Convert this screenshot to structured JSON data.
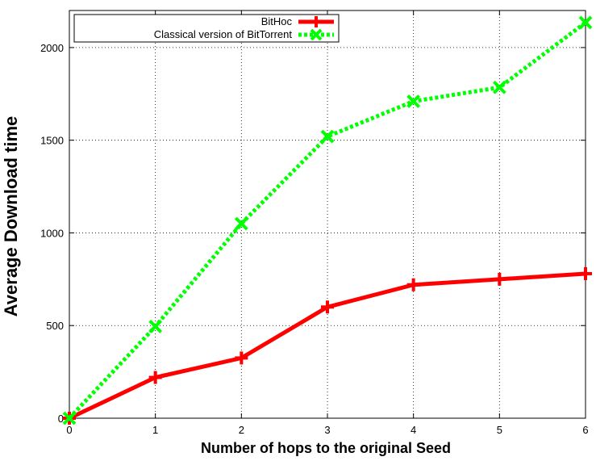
{
  "chart_data": {
    "type": "line",
    "title": "",
    "xlabel": "Number of hops to the original Seed",
    "ylabel": "Average Download time",
    "x": [
      0,
      1,
      2,
      3,
      4,
      5,
      6
    ],
    "xlim": [
      0,
      6
    ],
    "ylim": [
      0,
      2200
    ],
    "xticks": [
      0,
      1,
      2,
      3,
      4,
      5,
      6
    ],
    "yticks": [
      0,
      500,
      1000,
      1500,
      2000
    ],
    "grid": true,
    "legend_position": "top-left",
    "series": [
      {
        "name": "BitHoc",
        "values": [
          0,
          220,
          325,
          600,
          720,
          750,
          780
        ],
        "color": "#ff0000",
        "line_style": "solid",
        "marker": "plus"
      },
      {
        "name": "Classical version of BitTorrent",
        "values": [
          0,
          495,
          1050,
          1520,
          1710,
          1785,
          2135
        ],
        "color": "#00ff00",
        "line_style": "dotted",
        "marker": "x"
      }
    ]
  }
}
